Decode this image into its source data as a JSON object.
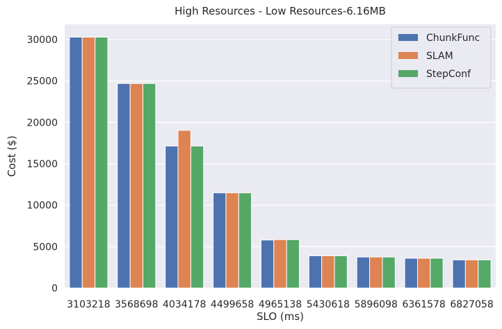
{
  "chart_data": {
    "type": "bar",
    "title": "High Resources - Low Resources-6.16MB",
    "xlabel": "SLO (ms)",
    "ylabel": "Cost ($)",
    "categories": [
      "3103218",
      "3568698",
      "4034178",
      "4499658",
      "4965138",
      "5430618",
      "5896098",
      "6361578",
      "6827058"
    ],
    "series": [
      {
        "name": "ChunkFunc",
        "color": "#4c72b0",
        "values": [
          30300,
          24700,
          17150,
          11500,
          5800,
          3900,
          3750,
          3600,
          3400
        ]
      },
      {
        "name": "SLAM",
        "color": "#dd8452",
        "values": [
          30300,
          24700,
          19050,
          11500,
          5850,
          3900,
          3750,
          3600,
          3400
        ]
      },
      {
        "name": "StepConf",
        "color": "#55a868",
        "values": [
          30300,
          24700,
          17150,
          11500,
          5850,
          3900,
          3750,
          3600,
          3400
        ]
      }
    ],
    "ylim": [
      0,
      31850
    ],
    "yticks": [
      0,
      5000,
      10000,
      15000,
      20000,
      25000,
      30000
    ],
    "grid": true,
    "legend": "top-right",
    "background": "#eaeaf2"
  }
}
